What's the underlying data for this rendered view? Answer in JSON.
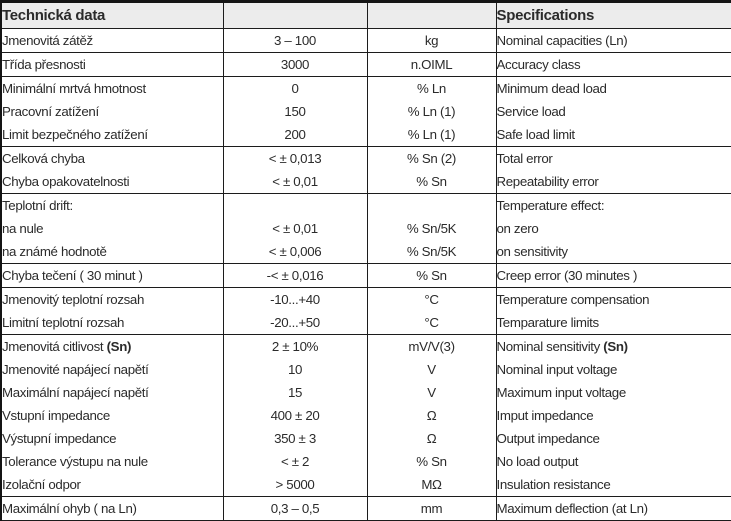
{
  "header": {
    "czech_title": "Technická data",
    "english_title": "Specifications"
  },
  "colors": {
    "header_bg": "#ececec",
    "border": "#1c1c1c",
    "text": "#2b2b2b"
  },
  "table": {
    "rows": [
      {
        "cz": "Jmenovitá zátěž",
        "value": "3 – 100",
        "unit": "kg",
        "en": "Nominal capacities (Ln)",
        "group_end": true
      },
      {
        "cz": "Třída přesnosti",
        "value": "3000",
        "unit": "n.OIML",
        "en": "Accuracy class",
        "group_end": true
      },
      {
        "cz": "Minimální mrtvá hmotnost",
        "value": "0",
        "unit": "% Ln",
        "en": "Minimum dead load",
        "group_end": false
      },
      {
        "cz": "Pracovní zatížení",
        "value": "150",
        "unit": "% Ln (1)",
        "en": "Service load",
        "group_end": false
      },
      {
        "cz": "Limit bezpečného zatížení",
        "value": "200",
        "unit": "% Ln (1)",
        "en": "Safe load limit",
        "group_end": true
      },
      {
        "cz": "Celková chyba",
        "value": "< ± 0,013",
        "unit": "% Sn (2)",
        "en": "Total error",
        "group_end": false
      },
      {
        "cz": "Chyba opakovatelnosti",
        "value": "< ± 0,01",
        "unit": "% Sn",
        "en": "Repeatability error",
        "group_end": true
      },
      {
        "cz": "Teplotní drift:",
        "value": "",
        "unit": "",
        "en": "Temperature effect:",
        "group_end": false
      },
      {
        "cz": "na nule",
        "value": "< ± 0,01",
        "unit": "% Sn/5K",
        "en": "on zero",
        "group_end": false
      },
      {
        "cz": "na známé hodnotě",
        "value": "< ± 0,006",
        "unit": "% Sn/5K",
        "en": "on sensitivity",
        "group_end": true
      },
      {
        "cz": "Chyba tečení ( 30 minut )",
        "value": "-< ± 0,016",
        "unit": "% Sn",
        "en": "Creep error (30 minutes )",
        "group_end": true
      },
      {
        "cz": "Jmenovitý teplotní rozsah",
        "value": "-10...+40",
        "unit": "°C",
        "en": "Temperature compensation",
        "group_end": false
      },
      {
        "cz": "Limitní teplotní rozsah",
        "value": "-20...+50",
        "unit": "°C",
        "en": "Temparature limits",
        "group_end": true
      },
      {
        "cz": "Jmenovitá citlivost ",
        "cz_bold": "(Sn)",
        "value": "2 ± 10%",
        "unit": "mV/V(3)",
        "en": "Nominal sensitivity ",
        "en_bold": "(Sn)",
        "group_end": false
      },
      {
        "cz": "Jmenovité napájecí napětí",
        "value": "10",
        "unit": "V",
        "en": "Nominal input voltage",
        "group_end": false
      },
      {
        "cz": "Maximální napájecí napětí",
        "value": "15",
        "unit": "V",
        "en": "Maximum input voltage",
        "group_end": false
      },
      {
        "cz": "Vstupní impedance",
        "value": "400 ± 20",
        "unit": "Ω",
        "en": "Imput impedance",
        "group_end": false
      },
      {
        "cz": "Výstupní impedance",
        "value": "350 ± 3",
        "unit": "Ω",
        "en": "Output impedance",
        "group_end": false
      },
      {
        "cz": "Tolerance výstupu na nule",
        "value": "< ± 2",
        "unit": "% Sn",
        "en": "No load output",
        "group_end": false
      },
      {
        "cz": "Izolační odpor",
        "value": "> 5000",
        "unit": "MΩ",
        "en": "Insulation resistance",
        "group_end": true
      },
      {
        "cz": "Maximální ohyb ( na Ln)",
        "value": "0,3 – 0,5",
        "unit": "mm",
        "en": "Maximum deflection (at Ln)",
        "group_end": true
      }
    ]
  }
}
